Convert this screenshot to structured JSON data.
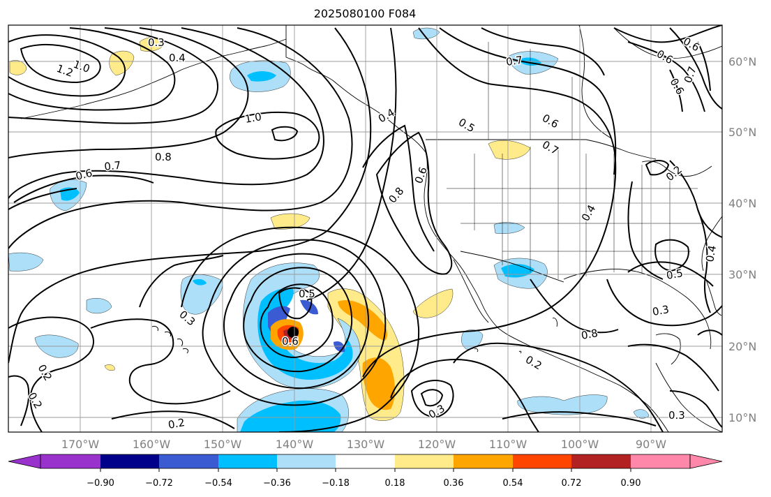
{
  "title": "2025080100 F084",
  "map": {
    "lon_labels": [
      "170°W",
      "160°W",
      "150°W",
      "140°W",
      "130°W",
      "120°W",
      "110°W",
      "100°W",
      "90°W"
    ],
    "lat_labels": [
      "60°N",
      "50°N",
      "40°N",
      "30°N",
      "20°N",
      "10°N"
    ],
    "contour_labels": [
      "0.3",
      "0.4",
      "1.0",
      "1.2",
      "1.0",
      "0.8",
      "0.7",
      "0.6",
      "0.4",
      "0.5",
      "0.6",
      "0.7",
      "0.6",
      "0.7",
      "0.6",
      "0.8",
      "0.6",
      "0.4",
      "0.2",
      "0.5",
      "0.6",
      "0.3",
      "0.3",
      "0.8",
      "0.3",
      "0.2",
      "0.2",
      "0.2",
      "0.3",
      "0.2",
      "0.5",
      "0.4",
      "0.7",
      "0.6"
    ],
    "colors": {
      "coast": "#000000",
      "grid": "#9a9a9a",
      "contour": "#000000"
    }
  },
  "colorbar": {
    "tick_labels": [
      "−0.90",
      "−0.72",
      "−0.54",
      "−0.36",
      "−0.18",
      "0.18",
      "0.36",
      "0.54",
      "0.72",
      "0.90"
    ],
    "colors": [
      "#9932cc",
      "#00008b",
      "#3a5bd1",
      "#00bfff",
      "#aedff8",
      "#ffffff",
      "#ffeb8a",
      "#ffa500",
      "#ff4500",
      "#b22222",
      "#ff88aa"
    ]
  }
}
